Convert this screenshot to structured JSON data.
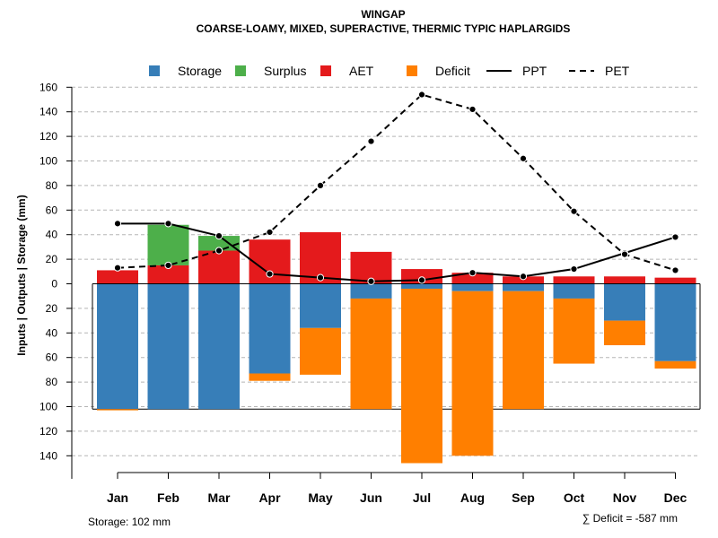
{
  "chart_data": {
    "type": "bar",
    "title": "WINGAP",
    "subtitle": "COARSE-LOAMY, MIXED, SUPERACTIVE, THERMIC TYPIC HAPLARGIDS",
    "ylabel": "Inputs | Outputs | Storage    (mm)",
    "categories": [
      "Jan",
      "Feb",
      "Mar",
      "Apr",
      "May",
      "Jun",
      "Jul",
      "Aug",
      "Sep",
      "Oct",
      "Nov",
      "Dec"
    ],
    "ylim": [
      -150,
      160
    ],
    "y_ticks": [
      160,
      140,
      120,
      100,
      80,
      60,
      40,
      20,
      0,
      -20,
      -40,
      -60,
      -80,
      -100,
      -120,
      -140
    ],
    "y_tick_labels": [
      "160",
      "140",
      "120",
      "100",
      "80",
      "60",
      "40",
      "20",
      "0",
      "20",
      "40",
      "60",
      "80",
      "100",
      "120",
      "140"
    ],
    "grid": true,
    "legend_position": "top",
    "legend": [
      {
        "name": "Storage",
        "kind": "box",
        "color": "#377EB8"
      },
      {
        "name": "Surplus",
        "kind": "box",
        "color": "#4DAF4A"
      },
      {
        "name": "AET",
        "kind": "box",
        "color": "#E41A1C"
      },
      {
        "name": "Deficit",
        "kind": "box",
        "color": "#FF7F00"
      },
      {
        "name": "PPT",
        "kind": "solid",
        "color": "#000000"
      },
      {
        "name": "PET",
        "kind": "dashed",
        "color": "#000000"
      }
    ],
    "series": [
      {
        "name": "AET",
        "color": "#E41A1C",
        "values": [
          11,
          15,
          27,
          36,
          42,
          26,
          12,
          9,
          6,
          6,
          6,
          5
        ]
      },
      {
        "name": "Surplus",
        "color": "#4DAF4A",
        "values": [
          0,
          33,
          12,
          0,
          0,
          0,
          0,
          0,
          0,
          0,
          0,
          0
        ]
      },
      {
        "name": "Storage",
        "color": "#377EB8",
        "values": [
          -102,
          -102,
          -102,
          -73,
          -36,
          -12,
          -4,
          -6,
          -6,
          -12,
          -30,
          -63
        ]
      },
      {
        "name": "Deficit",
        "color": "#FF7F00",
        "values": [
          -1,
          0,
          0,
          -6,
          -38,
          -90,
          -142,
          -134,
          -96,
          -53,
          -20,
          -6
        ]
      },
      {
        "name": "PPT",
        "color": "#000000",
        "values": [
          49,
          49,
          39,
          8,
          5,
          2,
          3,
          9,
          6,
          12,
          25,
          38
        ]
      },
      {
        "name": "PET",
        "color": "#000000",
        "values": [
          13,
          15,
          27,
          42,
          80,
          116,
          154,
          142,
          102,
          59,
          24,
          11
        ]
      }
    ],
    "storage_capacity": 102,
    "storage_note": "Storage: 102 mm",
    "deficit_note": "∑ Deficit = -587 mm"
  }
}
